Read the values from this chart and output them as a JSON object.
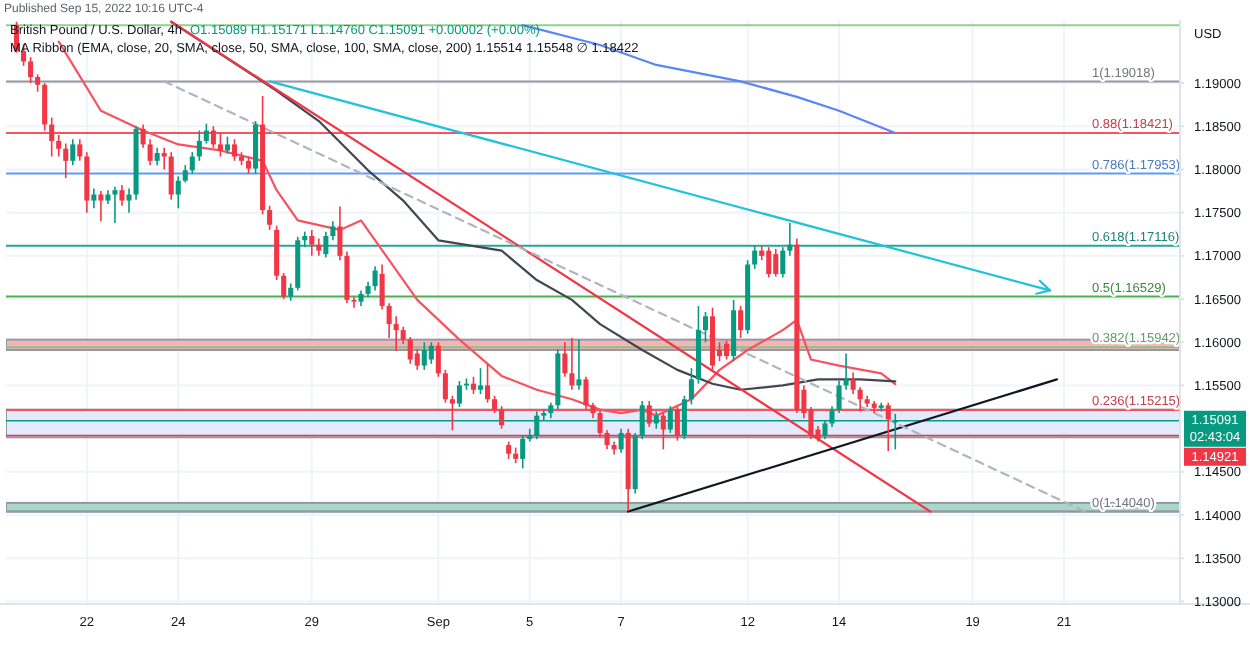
{
  "chart_data": {
    "type": "candlestick",
    "title": "British Pound / U.S. Dollar, 4h",
    "subtitle": "O1.15089 H1.15171 L1.14760 C1.15091 +0.00002 (+0.00%)",
    "ylabel": "USD",
    "annotations": [
      "Published Sep 15, 2022 10:16 UTC-4",
      "MA Ribbon (EMA, close, 20, SMA, close, 50, SMA, close, 100, SMA, close, 200) 1.15514 1.15548 ∅ 1.18422",
      "02:43:04"
    ],
    "categories": [
      null,
      null,
      null,
      null,
      null,
      null,
      null,
      null,
      null,
      null,
      null,
      "22",
      null,
      null,
      null,
      null,
      null,
      null,
      null,
      null,
      null,
      null,
      null,
      null,
      "24",
      null,
      null,
      null,
      null,
      null,
      null,
      null,
      null,
      null,
      null,
      null,
      null,
      null,
      null,
      null,
      null,
      null,
      null,
      "29",
      null,
      null,
      null,
      null,
      null,
      null,
      null,
      null,
      null,
      null,
      null,
      null,
      null,
      null,
      null,
      null,
      null,
      "Sep",
      null,
      null,
      null,
      null,
      null,
      null,
      null,
      null,
      null,
      null,
      null,
      null,
      "5",
      null,
      null,
      null,
      null,
      null,
      null,
      null,
      null,
      null,
      null,
      null,
      null,
      "7",
      null,
      null,
      null,
      null,
      null,
      null,
      null,
      null,
      null,
      null,
      null,
      null,
      null,
      null,
      null,
      null,
      null,
      "12",
      null,
      null,
      null,
      null,
      null,
      null,
      null,
      null,
      null,
      null,
      null,
      null,
      "14",
      null,
      null,
      null,
      null,
      null,
      null,
      null,
      null,
      null,
      null,
      null,
      null,
      null,
      null,
      null,
      null,
      null,
      null,
      "19",
      null,
      null,
      null,
      null,
      null,
      null,
      null,
      null,
      null,
      null,
      null,
      null,
      "21",
      null,
      null,
      null,
      null,
      null,
      null,
      null,
      null,
      null,
      null,
      null,
      null,
      null,
      null,
      null,
      null
    ],
    "ohlc": [
      null,
      [
        1.1967,
        1.1971,
        1.1935,
        1.1937
      ],
      [
        1.1937,
        1.1945,
        1.192,
        1.1925
      ],
      [
        1.1925,
        1.193,
        1.19,
        1.1907
      ],
      [
        1.1907,
        1.191,
        1.189,
        1.1898
      ],
      [
        1.1898,
        1.19,
        1.1845,
        1.1852
      ],
      [
        1.1852,
        1.186,
        1.1815,
        1.1833
      ],
      [
        1.1833,
        1.184,
        1.1815,
        1.1824
      ],
      [
        1.1824,
        1.183,
        1.179,
        1.181
      ],
      [
        1.181,
        1.1835,
        1.1805,
        1.1829
      ],
      [
        1.1829,
        1.1835,
        1.181,
        1.1815
      ],
      [
        1.1815,
        1.182,
        1.175,
        1.1764
      ],
      [
        1.1764,
        1.1778,
        1.1755,
        1.1771
      ],
      [
        1.1771,
        1.1775,
        1.174,
        1.1764
      ],
      [
        1.1764,
        1.1776,
        1.176,
        1.1771
      ],
      [
        1.1771,
        1.178,
        1.1738,
        1.1776
      ],
      [
        1.1776,
        1.1782,
        1.1758,
        1.1764
      ],
      [
        1.1764,
        1.1778,
        1.175,
        1.1771
      ],
      [
        1.1771,
        1.185,
        1.1765,
        1.1847
      ],
      [
        1.1847,
        1.1852,
        1.1825,
        1.1829
      ],
      [
        1.1829,
        1.1835,
        1.1805,
        1.181
      ],
      [
        1.181,
        1.1825,
        1.1805,
        1.1819
      ],
      [
        1.1819,
        1.1825,
        1.18,
        1.1815
      ],
      [
        1.1815,
        1.182,
        1.1765,
        1.1771
      ],
      [
        1.1771,
        1.1792,
        1.1755,
        1.1787
      ],
      [
        1.1787,
        1.1805,
        1.1785,
        1.1799
      ],
      [
        1.1799,
        1.182,
        1.1795,
        1.1815
      ],
      [
        1.1815,
        1.1845,
        1.181,
        1.1833
      ],
      [
        1.1833,
        1.1853,
        1.183,
        1.1845
      ],
      [
        1.1845,
        1.185,
        1.1825,
        1.1829
      ],
      [
        1.1829,
        1.1843,
        1.1815,
        1.1822
      ],
      [
        1.1822,
        1.1838,
        1.1818,
        1.1829
      ],
      [
        1.1829,
        1.1835,
        1.181,
        1.1815
      ],
      [
        1.1815,
        1.182,
        1.1805,
        1.181
      ],
      [
        1.181,
        1.1815,
        1.1795,
        1.1801
      ],
      [
        1.1801,
        1.1856,
        1.1795,
        1.1852
      ],
      [
        1.1852,
        1.1885,
        1.1748,
        1.1753
      ],
      [
        1.1753,
        1.1758,
        1.173,
        1.1736
      ],
      [
        1.173,
        1.1735,
        1.1672,
        1.1677
      ],
      [
        1.1677,
        1.168,
        1.165,
        1.1653
      ],
      [
        1.1653,
        1.1668,
        1.1648,
        1.1663
      ],
      [
        1.1663,
        1.1722,
        1.166,
        1.1718
      ],
      [
        1.1718,
        1.1728,
        1.171,
        1.1723
      ],
      [
        1.1723,
        1.173,
        1.17,
        1.1713
      ],
      [
        1.1713,
        1.172,
        1.17,
        1.1706
      ],
      [
        1.1702,
        1.1728,
        1.1698,
        1.1723
      ],
      [
        1.1723,
        1.174,
        1.1718,
        1.1734
      ],
      [
        1.1734,
        1.1757,
        1.1695,
        1.17
      ],
      [
        1.17,
        1.1705,
        1.1645,
        1.1649
      ],
      [
        1.1649,
        1.1652,
        1.164,
        1.1647
      ],
      [
        1.1647,
        1.166,
        1.1642,
        1.1656
      ],
      [
        1.1656,
        1.167,
        1.1652,
        1.1665
      ],
      [
        1.1665,
        1.1688,
        1.166,
        1.1683
      ],
      [
        1.1679,
        1.169,
        1.1638,
        1.1642
      ],
      [
        1.1642,
        1.1645,
        1.1605,
        1.1621
      ],
      [
        1.1621,
        1.163,
        1.159,
        1.1614
      ],
      [
        1.1614,
        1.1618,
        1.1598,
        1.1603
      ],
      [
        1.1603,
        1.1606,
        1.1575,
        1.158
      ],
      [
        1.1587,
        1.1592,
        1.1568,
        1.1573
      ],
      [
        1.1573,
        1.16,
        1.1568,
        1.1591
      ],
      [
        1.158,
        1.16,
        1.1575,
        1.1596
      ],
      [
        1.1596,
        1.16,
        1.156,
        1.1564
      ],
      [
        1.1564,
        1.1568,
        1.153,
        1.1534
      ],
      [
        1.1534,
        1.1538,
        1.1498,
        1.1529
      ],
      [
        1.1529,
        1.1555,
        1.1525,
        1.155
      ],
      [
        1.155,
        1.1558,
        1.1545,
        1.1552
      ],
      [
        1.1552,
        1.156,
        1.154,
        1.1545
      ],
      [
        1.1545,
        1.157,
        1.154,
        1.155
      ],
      [
        1.155,
        1.1575,
        1.153,
        1.1534
      ],
      [
        1.1534,
        1.1538,
        1.1518,
        1.1522
      ],
      [
        1.1522,
        1.1526,
        1.15,
        1.1504
      ],
      [
        1.1481,
        1.1485,
        1.1465,
        1.1471
      ],
      [
        1.1471,
        1.1478,
        1.146,
        1.1465
      ],
      [
        1.1465,
        1.1492,
        1.1454,
        1.1488
      ],
      [
        1.1488,
        1.15,
        1.1485,
        1.1492
      ],
      [
        1.1492,
        1.152,
        1.1488,
        1.1515
      ],
      [
        1.1515,
        1.1522,
        1.151,
        1.1518
      ],
      [
        1.1518,
        1.153,
        1.1512,
        1.1527
      ],
      [
        1.1527,
        1.1592,
        1.1522,
        1.1587
      ],
      [
        1.1587,
        1.16,
        1.156,
        1.1564
      ],
      [
        1.1564,
        1.1605,
        1.1545,
        1.155
      ],
      [
        1.155,
        1.1603,
        1.1545,
        1.1557
      ],
      [
        1.1557,
        1.156,
        1.1522,
        1.1527
      ],
      [
        1.1527,
        1.153,
        1.1512,
        1.1518
      ],
      [
        1.1518,
        1.1521,
        1.149,
        1.1495
      ],
      [
        1.1495,
        1.1498,
        1.1476,
        1.1481
      ],
      [
        1.1481,
        1.1485,
        1.147,
        1.1476
      ],
      [
        1.1476,
        1.15,
        1.1472,
        1.1495
      ],
      [
        1.1495,
        1.15,
        1.1405,
        1.143
      ],
      [
        1.143,
        1.1495,
        1.1425,
        1.1492
      ],
      [
        1.1492,
        1.1532,
        1.1488,
        1.1527
      ],
      [
        1.1527,
        1.1532,
        1.1502,
        1.1506
      ],
      [
        1.1506,
        1.152,
        1.15,
        1.1515
      ],
      [
        1.1515,
        1.1518,
        1.1476,
        1.1499
      ],
      [
        1.1499,
        1.1526,
        1.1495,
        1.1522
      ],
      [
        1.1522,
        1.1525,
        1.1486,
        1.1492
      ],
      [
        1.1492,
        1.1538,
        1.1488,
        1.1534
      ],
      [
        1.1534,
        1.157,
        1.1528,
        1.1557
      ],
      [
        1.1557,
        1.1642,
        1.1552,
        1.1614
      ],
      [
        1.1614,
        1.1635,
        1.16,
        1.163
      ],
      [
        1.163,
        1.164,
        1.1568,
        1.1573
      ],
      [
        1.1591,
        1.16,
        1.1578,
        1.1584
      ],
      [
        1.1598,
        1.1602,
        1.158,
        1.1584
      ],
      [
        1.1584,
        1.1649,
        1.1578,
        1.1637
      ],
      [
        1.1637,
        1.1642,
        1.1605,
        1.1614
      ],
      [
        1.1614,
        1.1695,
        1.161,
        1.169
      ],
      [
        1.169,
        1.1712,
        1.1685,
        1.1706
      ],
      [
        1.1706,
        1.1712,
        1.1695,
        1.17
      ],
      [
        1.1706,
        1.171,
        1.1675,
        1.1679
      ],
      [
        1.1702,
        1.1708,
        1.1676,
        1.1679
      ],
      [
        1.1679,
        1.171,
        1.1675,
        1.1706
      ],
      [
        1.1706,
        1.1738,
        1.17,
        1.1713
      ],
      [
        1.1713,
        1.172,
        1.1518,
        1.1522
      ],
      [
        1.1545,
        1.155,
        1.1512,
        1.1518
      ],
      [
        1.1522,
        1.1525,
        1.1488,
        1.1492
      ],
      [
        1.1499,
        1.1503,
        1.1485,
        1.1488
      ],
      [
        1.1492,
        1.151,
        1.1488,
        1.1506
      ],
      [
        1.1506,
        1.1526,
        1.1502,
        1.1522
      ],
      [
        1.1522,
        1.1555,
        1.1518,
        1.155
      ],
      [
        1.155,
        1.1587,
        1.1545,
        1.1557
      ],
      [
        1.1557,
        1.1565,
        1.154,
        1.1545
      ],
      [
        1.1545,
        1.1548,
        1.152,
        1.1534
      ],
      [
        1.1534,
        1.1538,
        1.1525,
        1.1529
      ],
      [
        1.1529,
        1.1532,
        1.1518,
        1.1524
      ],
      [
        1.1524,
        1.153,
        1.152,
        1.1527
      ],
      [
        1.1527,
        1.153,
        1.1474,
        1.1511
      ],
      [
        1.15089,
        1.15171,
        1.1476,
        1.15091
      ],
      null,
      null,
      null,
      null,
      null,
      null,
      null,
      null,
      null,
      null,
      null,
      null,
      null,
      null,
      null,
      null,
      null,
      null,
      null,
      null,
      null,
      null,
      null,
      null,
      null,
      null,
      null,
      null,
      null,
      null,
      null,
      null,
      null,
      null,
      null,
      null,
      null,
      null,
      null,
      null
    ],
    "series": [
      {
        "type": "line",
        "color": "#f7525f",
        "values": [
          null,
          null,
          null,
          null,
          null,
          null,
          null,
          1.1948,
          null,
          null,
          null,
          null,
          null,
          1.1868,
          null,
          null,
          null,
          null,
          null,
          1.1845,
          null,
          null,
          null,
          null,
          1.1829,
          null,
          null,
          null,
          null,
          null,
          1.1822,
          null,
          null,
          null,
          null,
          null,
          1.181,
          null,
          1.1776,
          null,
          null,
          1.1741,
          null,
          null,
          null,
          null,
          null,
          1.173,
          null,
          null,
          1.1741,
          null,
          null,
          null,
          1.1695,
          null,
          null,
          null,
          1.1649,
          null,
          null,
          null,
          null,
          null,
          1.1603,
          null,
          null,
          null,
          null,
          null,
          1.1561,
          null,
          null,
          null,
          null,
          1.1545,
          null,
          null,
          null,
          null,
          1.1534,
          null,
          null,
          null,
          1.1522,
          null,
          null,
          1.1518,
          null,
          null,
          1.1522,
          null,
          1.1515,
          null,
          null,
          null,
          null,
          1.1534,
          null,
          null,
          null,
          1.1568,
          null,
          null,
          null,
          1.1591,
          null,
          null,
          null,
          null,
          1.1614,
          null,
          1.1626,
          null,
          1.158,
          null,
          null,
          null,
          1.1573,
          null,
          null,
          null,
          null,
          null,
          1.1564,
          null,
          1.15514,
          null,
          null,
          null,
          null,
          null,
          null,
          null,
          null,
          null,
          null,
          null,
          null,
          null,
          null,
          null,
          null,
          null,
          null,
          null,
          null,
          null,
          null,
          null,
          null,
          null,
          null,
          null,
          null,
          null,
          null,
          null,
          null,
          null,
          null,
          null,
          null,
          null,
          null,
          null,
          null
        ]
      },
      {
        "type": "line",
        "color": "#434651",
        "values": [
          null,
          null,
          null,
          null,
          null,
          null,
          null,
          null,
          null,
          null,
          null,
          null,
          null,
          null,
          null,
          null,
          null,
          null,
          null,
          null,
          null,
          null,
          null,
          1.1971,
          null,
          null,
          null,
          null,
          null,
          null,
          null,
          null,
          null,
          null,
          null,
          null,
          null,
          null,
          1.1891,
          null,
          null,
          null,
          null,
          null,
          1.1856,
          null,
          null,
          null,
          null,
          null,
          null,
          1.1799,
          null,
          null,
          null,
          null,
          1.1764,
          null,
          null,
          null,
          null,
          1.1718,
          null,
          null,
          null,
          null,
          null,
          null,
          null,
          null,
          1.1706,
          null,
          null,
          null,
          null,
          1.1672,
          null,
          null,
          null,
          null,
          1.1649,
          null,
          null,
          null,
          1.1621,
          null,
          null,
          null,
          null,
          null,
          1.1591,
          null,
          null,
          null,
          null,
          1.1568,
          null,
          null,
          null,
          null,
          1.1552,
          null,
          null,
          null,
          1.1545,
          null,
          null,
          null,
          null,
          null,
          1.155,
          null,
          null,
          null,
          null,
          1.1557,
          null,
          null,
          null,
          null,
          null,
          1.1557,
          null,
          null,
          null,
          null,
          1.15548,
          null,
          null,
          null,
          null,
          null,
          null,
          null,
          null,
          null,
          null,
          null,
          null,
          null,
          null,
          null,
          null,
          null,
          null,
          null,
          null,
          null,
          null,
          null,
          null,
          null,
          null,
          null,
          null,
          null,
          null,
          null,
          null,
          null,
          null,
          null,
          null,
          null,
          null,
          null,
          null
        ]
      },
      {
        "type": "line",
        "color": "#5b86f5",
        "values": [
          null,
          null,
          null,
          null,
          null,
          null,
          null,
          null,
          null,
          null,
          null,
          null,
          null,
          null,
          null,
          null,
          null,
          null,
          null,
          null,
          null,
          null,
          null,
          null,
          null,
          null,
          null,
          null,
          null,
          null,
          null,
          null,
          null,
          null,
          null,
          null,
          null,
          null,
          null,
          null,
          null,
          null,
          null,
          null,
          null,
          null,
          null,
          null,
          null,
          null,
          null,
          null,
          null,
          null,
          null,
          null,
          null,
          null,
          null,
          null,
          null,
          null,
          null,
          null,
          null,
          null,
          null,
          null,
          null,
          null,
          null,
          null,
          null,
          1.1967,
          null,
          null,
          null,
          null,
          null,
          null,
          null,
          null,
          null,
          null,
          1.1944,
          null,
          null,
          null,
          null,
          null,
          null,
          null,
          1.1921,
          null,
          null,
          null,
          null,
          null,
          null,
          null,
          null,
          null,
          null,
          null,
          1.1902,
          null,
          null,
          null,
          null,
          null,
          null,
          null,
          1.1884,
          null,
          null,
          null,
          null,
          null,
          1.1868,
          null,
          null,
          null,
          null,
          null,
          null,
          null,
          1.18422,
          null,
          null,
          null,
          null,
          null,
          null,
          null,
          null,
          null,
          null,
          null,
          null,
          null,
          null,
          null,
          null,
          null,
          null,
          null,
          null,
          null,
          null,
          null,
          null,
          null,
          null,
          null,
          null,
          null,
          null,
          null,
          null,
          null,
          null,
          null,
          null,
          null,
          null,
          null,
          null
        ]
      },
      {
        "type": "line",
        "color": "#f23645",
        "values": [
          null,
          null,
          null,
          null,
          null,
          null,
          null,
          null,
          null,
          null,
          null,
          null,
          null,
          null,
          null,
          null,
          null,
          null,
          null,
          null,
          null,
          null,
          null,
          1.1971,
          null,
          null,
          null,
          null,
          null,
          null,
          null,
          null,
          null,
          null,
          null,
          null,
          null,
          null,
          null,
          null,
          null,
          null,
          null,
          null,
          null,
          null,
          null,
          null,
          null,
          null,
          null,
          null,
          null,
          null,
          null,
          null,
          null,
          null,
          null,
          null,
          null,
          null,
          null,
          null,
          null,
          null,
          null,
          null,
          null,
          null,
          null,
          null,
          null,
          null,
          null,
          null,
          null,
          null,
          null,
          null,
          null,
          null,
          null,
          null,
          null,
          null,
          null,
          null,
          null,
          null,
          null,
          null,
          null,
          null,
          null,
          null,
          null,
          null,
          null,
          null,
          null,
          null,
          null,
          null,
          null,
          null,
          null,
          null,
          null,
          null,
          null,
          null,
          null,
          null,
          null,
          null,
          null,
          null,
          null,
          null,
          null,
          null,
          null,
          null,
          null,
          null,
          null,
          null,
          null,
          null,
          null,
          1.1404,
          null,
          null,
          null,
          null,
          null,
          null,
          null,
          null,
          null,
          null,
          null,
          null,
          null,
          null,
          null,
          null,
          null,
          null,
          null,
          null,
          null,
          null,
          null,
          null,
          null,
          null,
          null,
          null,
          null,
          null,
          null,
          null,
          null,
          null,
          null
        ]
      },
      {
        "type": "line",
        "color": "#131722",
        "values": [
          null,
          null,
          null,
          null,
          null,
          null,
          null,
          null,
          null,
          null,
          null,
          null,
          null,
          null,
          null,
          null,
          null,
          null,
          null,
          null,
          null,
          null,
          null,
          null,
          null,
          null,
          null,
          null,
          null,
          null,
          null,
          null,
          null,
          null,
          null,
          null,
          null,
          null,
          null,
          null,
          null,
          null,
          null,
          null,
          null,
          null,
          null,
          null,
          null,
          null,
          null,
          null,
          null,
          null,
          null,
          null,
          null,
          null,
          null,
          null,
          null,
          null,
          null,
          null,
          null,
          null,
          null,
          null,
          null,
          null,
          null,
          null,
          null,
          null,
          null,
          null,
          null,
          null,
          null,
          null,
          null,
          null,
          null,
          null,
          null,
          null,
          null,
          null,
          1.1404,
          null,
          null,
          null,
          null,
          null,
          null,
          null,
          null,
          null,
          null,
          null,
          null,
          null,
          null,
          null,
          null,
          null,
          null,
          null,
          null,
          null,
          null,
          null,
          null,
          null,
          null,
          null,
          null,
          null,
          null,
          null,
          null,
          null,
          null,
          null,
          null,
          null,
          null,
          null,
          null,
          null,
          null,
          null,
          null,
          null,
          null,
          null,
          null,
          null,
          null,
          null,
          null,
          null,
          null,
          null,
          null,
          null,
          null,
          null,
          null,
          1.1557,
          null,
          null,
          null,
          null,
          null,
          null,
          null,
          null,
          null,
          null,
          null,
          null,
          null,
          null,
          null,
          null,
          null
        ]
      },
      {
        "type": "line",
        "color": "#22c3d8",
        "values": [
          null,
          null,
          null,
          null,
          null,
          null,
          null,
          null,
          null,
          null,
          null,
          null,
          null,
          null,
          null,
          null,
          null,
          null,
          null,
          null,
          null,
          null,
          null,
          null,
          null,
          null,
          null,
          null,
          null,
          null,
          null,
          null,
          null,
          null,
          null,
          null,
          null,
          1.1902,
          null,
          null,
          null,
          null,
          null,
          null,
          null,
          null,
          null,
          null,
          null,
          null,
          null,
          null,
          null,
          null,
          null,
          null,
          null,
          null,
          null,
          null,
          null,
          null,
          null,
          null,
          null,
          null,
          null,
          null,
          null,
          null,
          null,
          null,
          null,
          null,
          null,
          null,
          null,
          null,
          null,
          null,
          null,
          null,
          null,
          null,
          null,
          null,
          null,
          null,
          null,
          null,
          null,
          null,
          null,
          null,
          null,
          null,
          null,
          null,
          null,
          null,
          null,
          null,
          null,
          null,
          null,
          null,
          null,
          null,
          null,
          null,
          null,
          null,
          null,
          null,
          null,
          null,
          null,
          null,
          null,
          null,
          null,
          null,
          null,
          null,
          null,
          null,
          null,
          null,
          null,
          null,
          null,
          null,
          null,
          null,
          null,
          null,
          null,
          null,
          null,
          null,
          null,
          null,
          null,
          null,
          null,
          null,
          null,
          null,
          1.166,
          null,
          null,
          null,
          null,
          null,
          null,
          null,
          null,
          null,
          null,
          null,
          null,
          null,
          null,
          null,
          null,
          null,
          null
        ]
      },
      {
        "type": "line",
        "color": "#b2b5be",
        "line_style": "dashed",
        "values": [
          null,
          null,
          null,
          null,
          null,
          null,
          null,
          null,
          null,
          null,
          null,
          null,
          null,
          null,
          null,
          null,
          null,
          null,
          null,
          null,
          null,
          null,
          1.1902,
          null,
          null,
          null,
          null,
          null,
          null,
          null,
          null,
          null,
          null,
          null,
          null,
          null,
          null,
          null,
          null,
          null,
          null,
          null,
          null,
          null,
          null,
          null,
          null,
          null,
          null,
          null,
          null,
          null,
          null,
          null,
          null,
          null,
          null,
          null,
          null,
          null,
          null,
          null,
          null,
          null,
          null,
          null,
          null,
          null,
          null,
          null,
          null,
          null,
          null,
          null,
          null,
          null,
          null,
          null,
          null,
          null,
          null,
          null,
          null,
          null,
          null,
          null,
          null,
          null,
          null,
          null,
          null,
          null,
          null,
          null,
          null,
          null,
          null,
          null,
          null,
          null,
          null,
          null,
          null,
          null,
          null,
          null,
          null,
          null,
          null,
          null,
          null,
          null,
          null,
          null,
          null,
          null,
          null,
          null,
          null,
          null,
          null,
          null,
          null,
          null,
          null,
          null,
          null,
          null,
          null,
          null,
          null,
          null,
          null,
          null,
          null,
          null,
          null,
          null,
          null,
          null,
          null,
          null,
          null,
          null,
          null,
          null,
          null,
          null,
          null,
          null,
          null,
          null,
          null,
          1.1404,
          null,
          null,
          null,
          null,
          null,
          null,
          null,
          null,
          null,
          null,
          null,
          null,
          null
        ]
      }
    ],
    "bands": [
      {
        "axis": "y",
        "from": 1.1591,
        "to": 1.1603,
        "color": "#f5b5b8"
      },
      {
        "axis": "y",
        "from": 1.149,
        "to": 1.1522,
        "color": "#e3eafb"
      },
      {
        "axis": "y",
        "from": 1.1404,
        "to": 1.1414,
        "color": "#a9d8cb"
      }
    ],
    "ref_lines": [
      {
        "axis": "y",
        "value": 1.1967,
        "label": null,
        "color": "#8fd18f"
      },
      {
        "axis": "y",
        "value": 1.19018,
        "label": "1(1.19018)",
        "color": "#9598a1"
      },
      {
        "axis": "y",
        "value": 1.18421,
        "label": "0.88(1.18421)",
        "color": "#f7525f"
      },
      {
        "axis": "y",
        "value": 1.17953,
        "label": "0.786(1.17953)",
        "color": "#5b9cf6"
      },
      {
        "axis": "y",
        "value": 1.17116,
        "label": "0.618(1.17116)",
        "color": "#26a69a"
      },
      {
        "axis": "y",
        "value": 1.16529,
        "label": "0.5(1.16529)",
        "color": "#4caf50"
      },
      {
        "axis": "y",
        "value": 1.15942,
        "label": "0.382(1.15942)",
        "color": "#81c784"
      },
      {
        "axis": "y",
        "value": 1.15215,
        "label": "0.236(1.15215)",
        "color": "#f7525f"
      },
      {
        "axis": "y",
        "value": 1.1404,
        "label": "0(1.14040)",
        "color": "#9598a1"
      },
      {
        "axis": "y",
        "value": 1.15091,
        "label": "1.15091",
        "color": "#089981",
        "line_style": "solid"
      },
      {
        "axis": "y",
        "value": 1.14921,
        "label": "1.14921",
        "color": "#f23645",
        "line_style": "solid"
      }
    ],
    "ylim": [
      1.1297,
      1.1973
    ],
    "yticks": [
      {
        "value": 1.13,
        "label": "1.13000"
      },
      {
        "value": 1.135,
        "label": "1.13500"
      },
      {
        "value": 1.14,
        "label": "1.14000"
      },
      {
        "value": 1.145,
        "label": "1.14500"
      },
      {
        "value": 1.155,
        "label": "1.15500"
      },
      {
        "value": 1.16,
        "label": "1.16000"
      },
      {
        "value": 1.165,
        "label": "1.16500"
      },
      {
        "value": 1.17,
        "label": "1.17000"
      },
      {
        "value": 1.175,
        "label": "1.17500"
      },
      {
        "value": 1.18,
        "label": "1.18000"
      },
      {
        "value": 1.185,
        "label": "1.18500"
      },
      {
        "value": 1.19,
        "label": "1.19000"
      }
    ],
    "grid": true
  }
}
